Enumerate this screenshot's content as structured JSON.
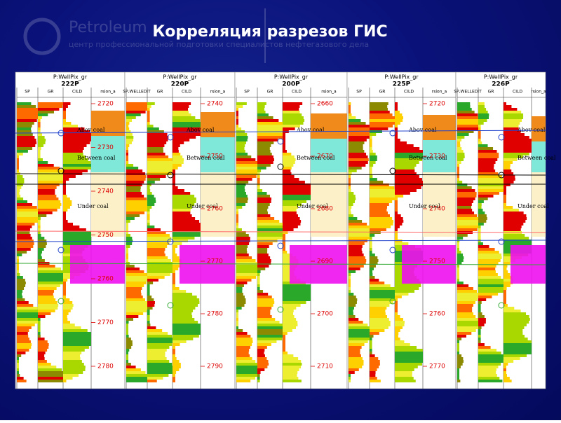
{
  "slide": {
    "title": "Корреляция разрезов ГИС",
    "logo": "Petroleum",
    "logo_sub": "центр профессиональной подготовки специалистов нефтегазового дела"
  },
  "header_label": "P:WellPix_gr",
  "zones": [
    "Abov coal",
    "Between coal",
    "Under coal"
  ],
  "wells": [
    {
      "name": "222P",
      "tracks": [
        "SP",
        "GR",
        "CILD",
        "rsion_a"
      ],
      "depths": [
        "2720",
        "2730",
        "2740",
        "2750",
        "2760",
        "2770",
        "2780"
      ]
    },
    {
      "name": "220P",
      "tracks": [
        "SP,WELLEDIT",
        "GR",
        "CILD",
        "rsion_a"
      ],
      "depths": [
        "2740",
        "2750",
        "2760",
        "2770",
        "2780",
        "2790"
      ]
    },
    {
      "name": "200P",
      "tracks": [
        "SP",
        "GR",
        "CILD",
        "rsion_a"
      ],
      "depths": [
        "2660",
        "2670",
        "2680",
        "2690",
        "2700",
        "2710"
      ]
    },
    {
      "name": "225P",
      "tracks": [
        "SP",
        "GR",
        "CILD",
        "rsion_a"
      ],
      "depths": [
        "2720",
        "2730",
        "2740",
        "2750",
        "2760",
        "2770"
      ]
    },
    {
      "name": "226P",
      "tracks": [
        "SP,WELLEDIT",
        "GR",
        "CILD",
        "rsion_a"
      ],
      "depths": []
    }
  ]
}
